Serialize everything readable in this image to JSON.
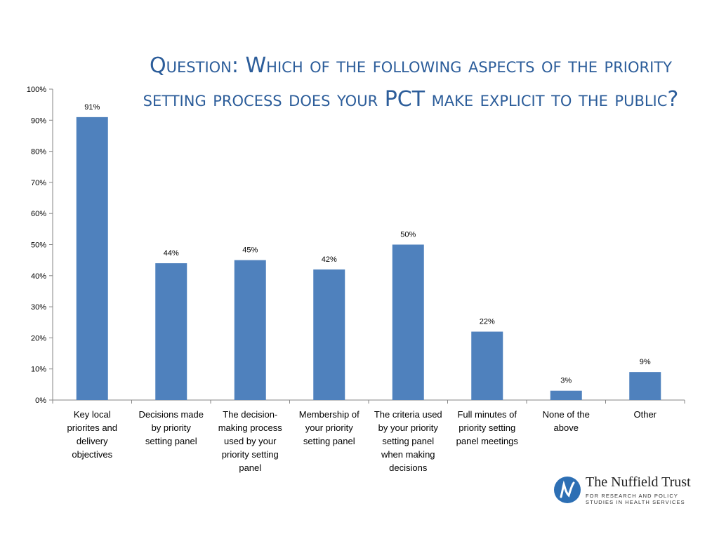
{
  "title": "Question: Which of the following aspects of the priority setting process does your PCT make explicit to the public?",
  "colors": {
    "bar": "#4f81bd",
    "title": "#2c5d9a",
    "axis": "#868686"
  },
  "logo": {
    "name": "The Nuffield Trust",
    "line1": "FOR RESEARCH AND POLICY",
    "line2": "STUDIES IN HEALTH SERVICES"
  },
  "chart_data": {
    "type": "bar",
    "title": "",
    "xlabel": "",
    "ylabel": "",
    "ylim": [
      0,
      100
    ],
    "y_ticks": [
      "0%",
      "10%",
      "20%",
      "30%",
      "40%",
      "50%",
      "60%",
      "70%",
      "80%",
      "90%",
      "100%"
    ],
    "categories": [
      [
        "Key local",
        "priorites and",
        "delivery",
        "objectives"
      ],
      [
        "Decisions made",
        "by priority",
        "setting panel"
      ],
      [
        "The decision-",
        "making process",
        "used by your",
        "priority setting",
        "panel"
      ],
      [
        "Membership of",
        "your priority",
        "setting panel"
      ],
      [
        "The criteria used",
        "by your priority",
        "setting panel",
        "when making",
        "decisions"
      ],
      [
        "Full minutes of",
        "priority setting",
        "panel meetings"
      ],
      [
        "None of the",
        "above"
      ],
      [
        "Other"
      ]
    ],
    "values": [
      91,
      44,
      45,
      42,
      50,
      22,
      3,
      9
    ],
    "data_labels": [
      "91%",
      "44%",
      "45%",
      "42%",
      "50%",
      "22%",
      "3%",
      "9%"
    ],
    "grid": false,
    "legend": "none"
  }
}
